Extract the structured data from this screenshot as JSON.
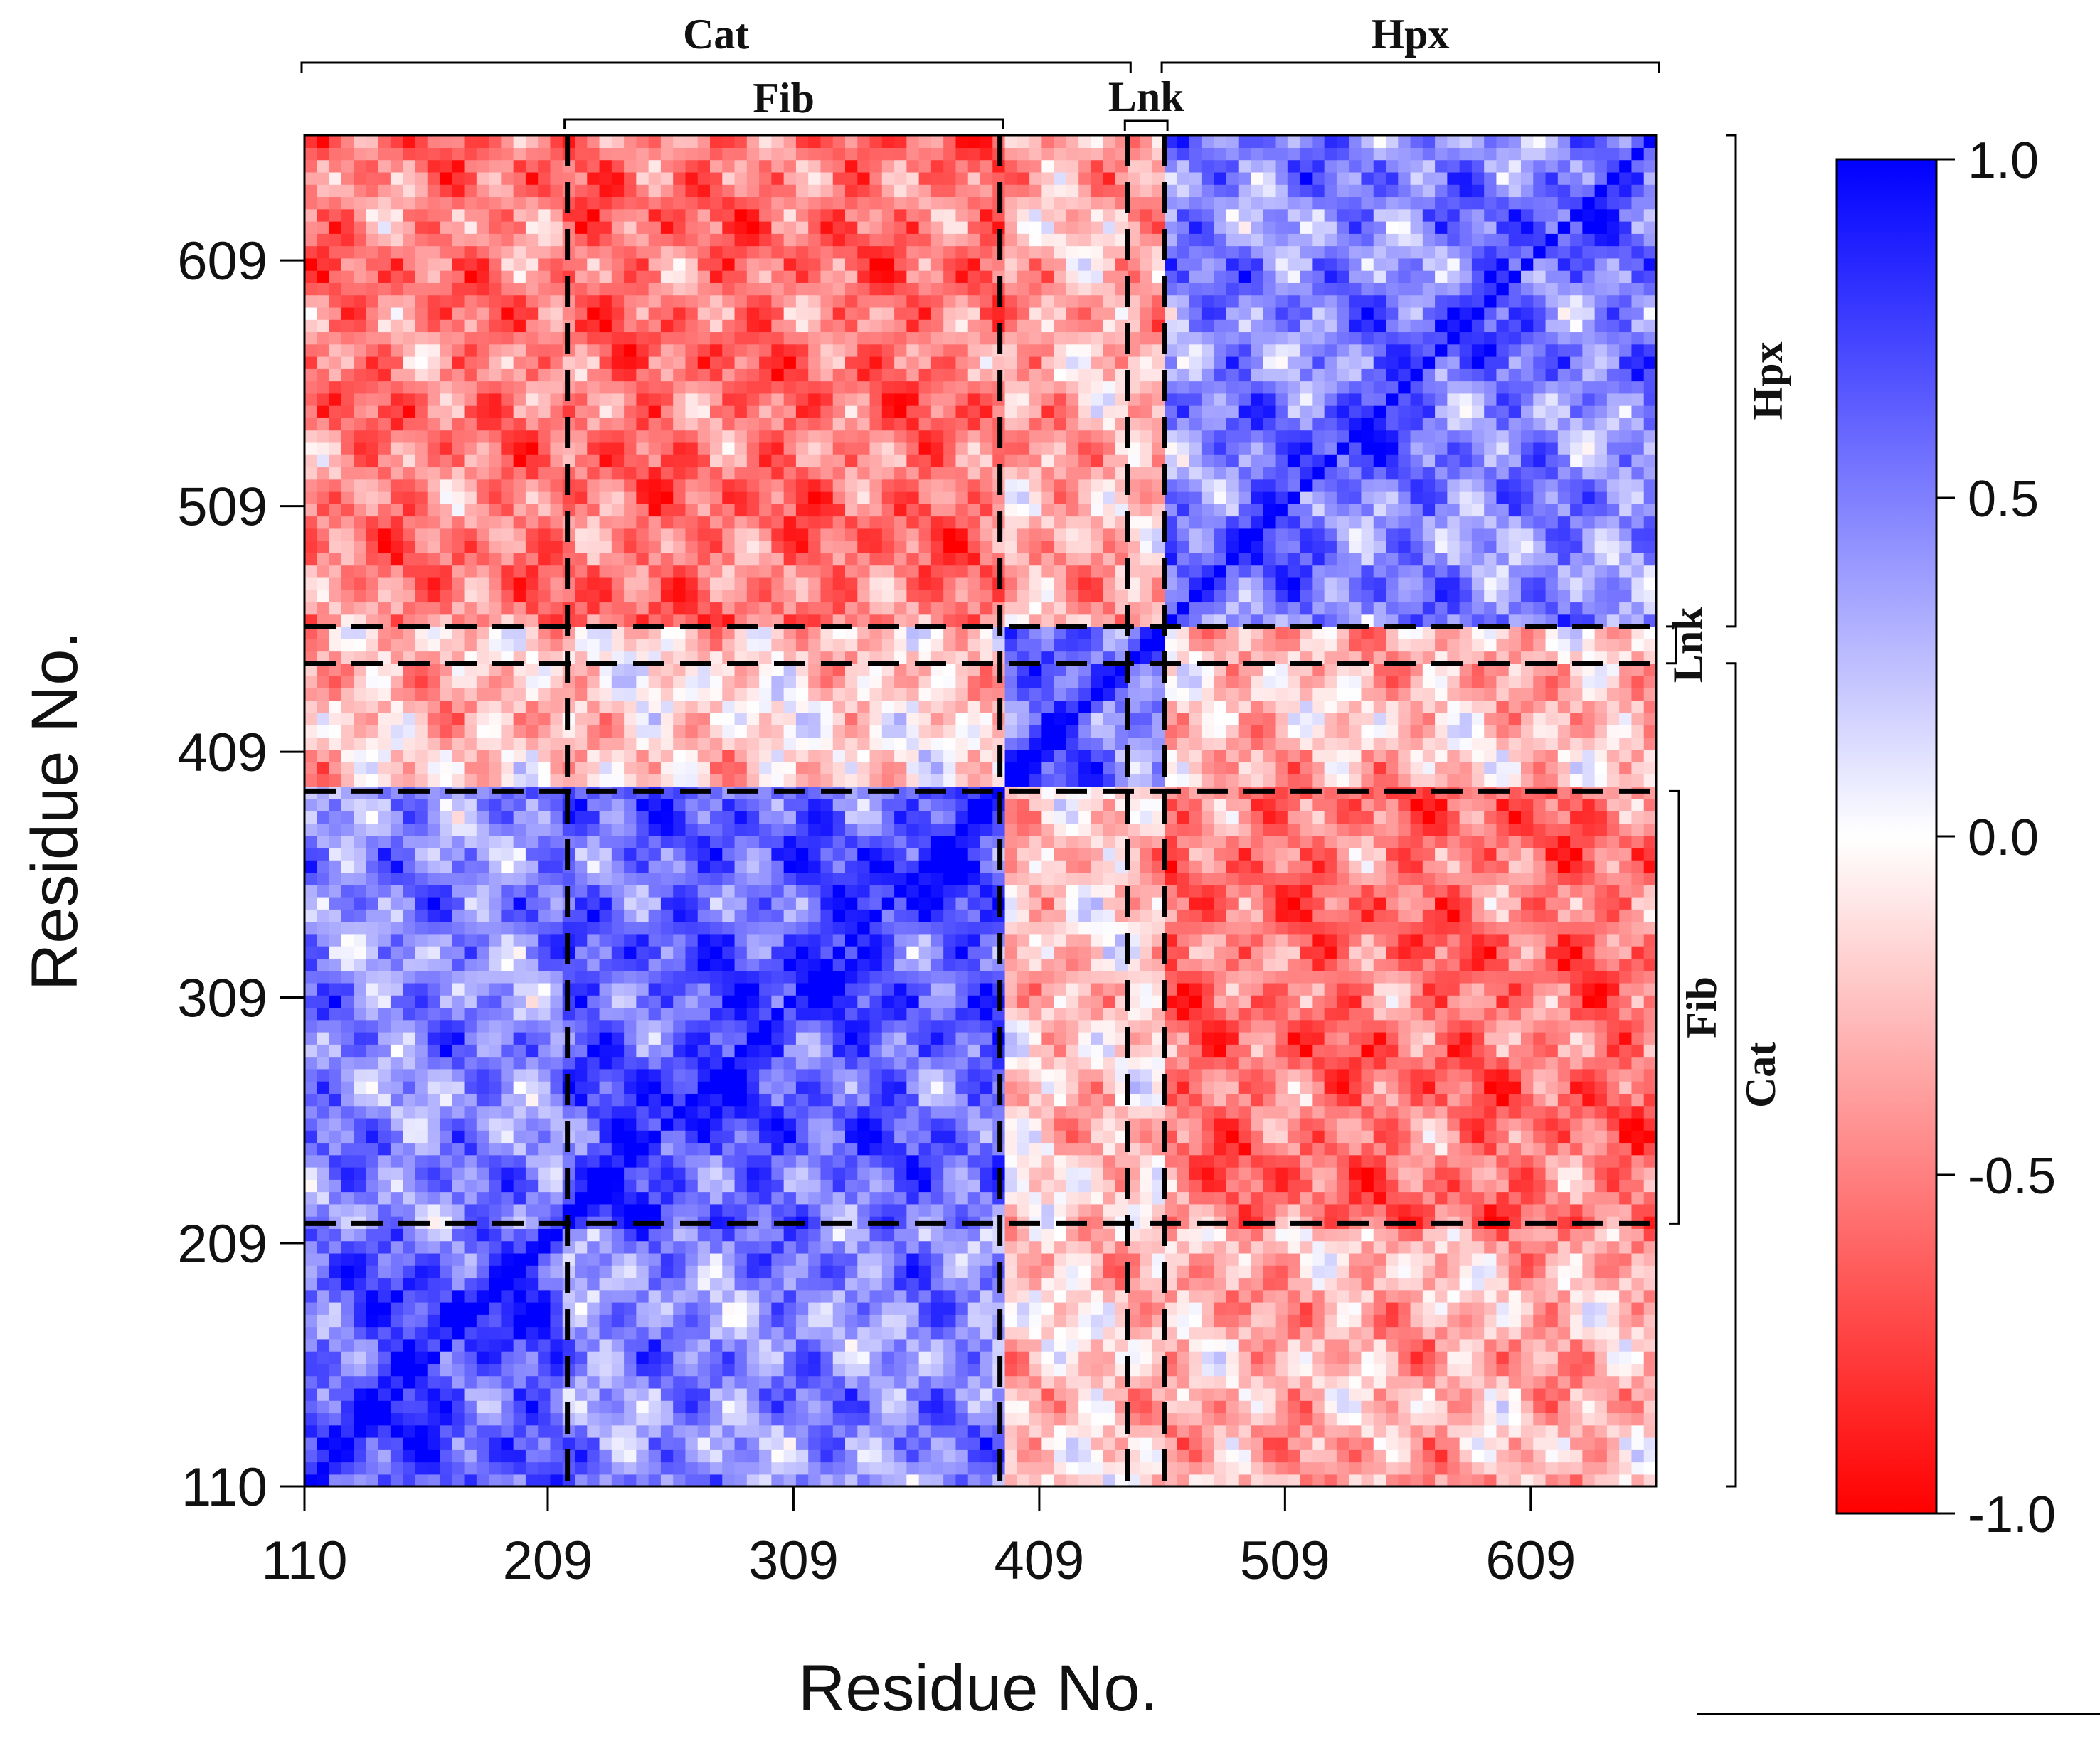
{
  "chart_data": {
    "type": "heatmap",
    "title": "",
    "xlabel": "Residue No.",
    "ylabel": "Residue No.",
    "x_range": [
      110,
      660
    ],
    "y_range": [
      110,
      660
    ],
    "x_ticks": [
      110,
      209,
      309,
      409,
      509,
      609
    ],
    "y_ticks": [
      110,
      209,
      309,
      409,
      509,
      609
    ],
    "value_range": [
      -1.0,
      1.0
    ],
    "colorbar": {
      "ticks": [
        1.0,
        0.5,
        0.0,
        -0.5,
        -1.0
      ],
      "tick_labels": [
        "1.0",
        "0.5",
        "0.0",
        "-0.5",
        "-1.0"
      ],
      "low_color": "#ff0000",
      "mid_color": "#ffffff",
      "high_color": "#0000ff"
    },
    "domain_boundaries": [
      217,
      393,
      445,
      460
    ],
    "domains": {
      "top": [
        {
          "name": "Cat",
          "start": 110,
          "end": 445
        },
        {
          "name": "Hpx",
          "start": 460,
          "end": 660
        }
      ],
      "top_inner": [
        {
          "name": "Fib",
          "start": 217,
          "end": 393
        },
        {
          "name": "Lnk",
          "start": 445,
          "end": 460
        }
      ],
      "right": [
        {
          "name": "Hpx",
          "start": 460,
          "end": 660
        },
        {
          "name": "Lnk",
          "start": 445,
          "end": 460
        },
        {
          "name": "Cat",
          "start": 110,
          "end": 445
        },
        {
          "name": "Fib",
          "start": 217,
          "end": 393
        }
      ]
    },
    "blocks": [
      {
        "x": [
          110,
          217
        ],
        "y": [
          110,
          217
        ],
        "value": 0.6
      },
      {
        "x": [
          217,
          393
        ],
        "y": [
          217,
          393
        ],
        "value": 0.6
      },
      {
        "x": [
          460,
          660
        ],
        "y": [
          460,
          660
        ],
        "value": 0.45
      },
      {
        "x": [
          393,
          460
        ],
        "y": [
          393,
          460
        ],
        "value": 0.5
      },
      {
        "x": [
          110,
          217
        ],
        "y": [
          217,
          393
        ],
        "value": 0.45
      },
      {
        "x": [
          217,
          393
        ],
        "y": [
          110,
          217
        ],
        "value": 0.45
      },
      {
        "x": [
          460,
          660
        ],
        "y": [
          217,
          393
        ],
        "value": -0.55
      },
      {
        "x": [
          217,
          393
        ],
        "y": [
          460,
          660
        ],
        "value": -0.55
      },
      {
        "x": [
          110,
          217
        ],
        "y": [
          460,
          660
        ],
        "value": -0.5
      },
      {
        "x": [
          460,
          660
        ],
        "y": [
          110,
          217
        ],
        "value": -0.3
      },
      {
        "x": [
          393,
          460
        ],
        "y": [
          217,
          393
        ],
        "value": -0.2
      },
      {
        "x": [
          217,
          393
        ],
        "y": [
          393,
          460
        ],
        "value": -0.15
      },
      {
        "x": [
          110,
          217
        ],
        "y": [
          393,
          460
        ],
        "value": -0.25
      },
      {
        "x": [
          393,
          460
        ],
        "y": [
          110,
          217
        ],
        "value": -0.2
      },
      {
        "x": [
          393,
          460
        ],
        "y": [
          460,
          660
        ],
        "value": -0.3
      },
      {
        "x": [
          460,
          660
        ],
        "y": [
          393,
          460
        ],
        "value": -0.25
      }
    ]
  }
}
